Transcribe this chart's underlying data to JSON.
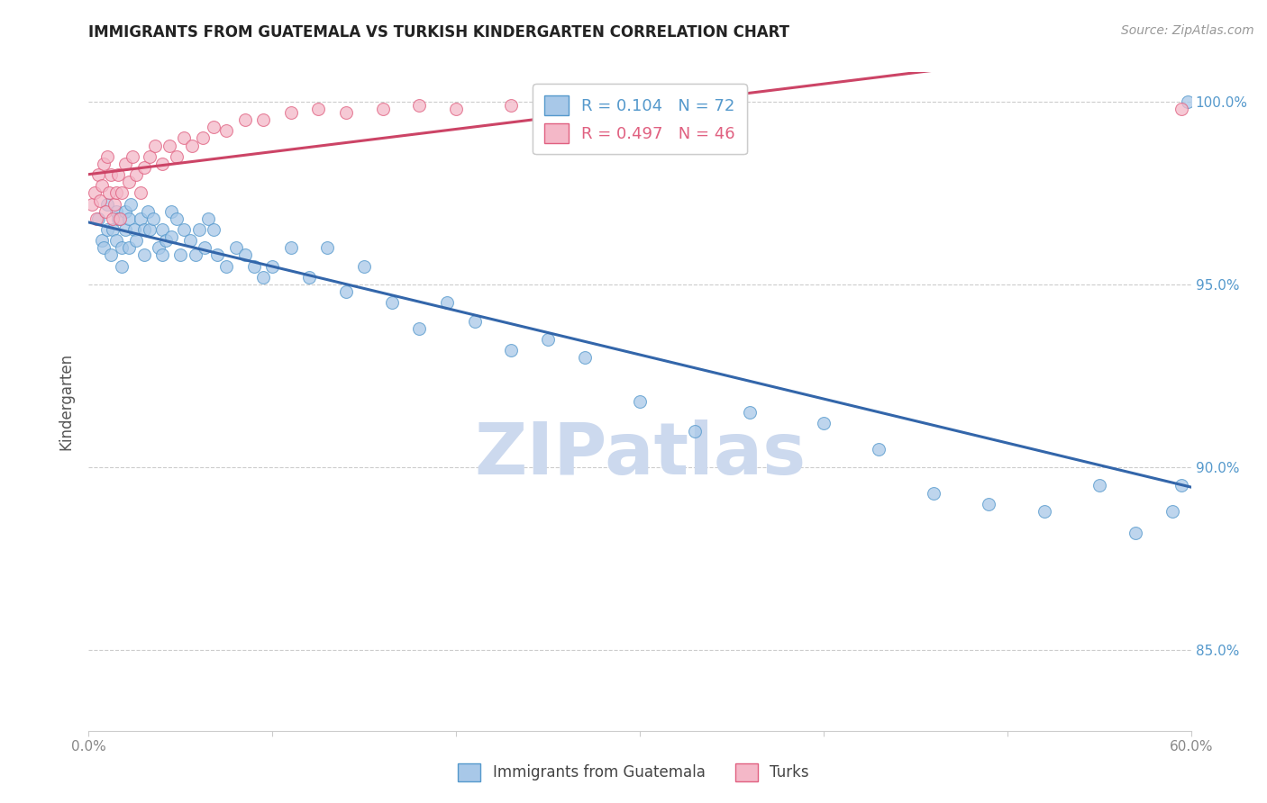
{
  "title": "IMMIGRANTS FROM GUATEMALA VS TURKISH KINDERGARTEN CORRELATION CHART",
  "source": "Source: ZipAtlas.com",
  "ylabel": "Kindergarten",
  "legend1_label": "Immigrants from Guatemala",
  "legend2_label": "Turks",
  "R1": 0.104,
  "N1": 72,
  "R2": 0.497,
  "N2": 46,
  "blue_fill": "#a8c8e8",
  "blue_edge": "#5599cc",
  "pink_fill": "#f4b8c8",
  "pink_edge": "#e06080",
  "blue_line_color": "#3366aa",
  "pink_line_color": "#cc4466",
  "xlim": [
    0.0,
    0.6
  ],
  "ylim": [
    0.828,
    1.008
  ],
  "yticks": [
    0.85,
    0.9,
    0.95,
    1.0
  ],
  "xticks": [
    0.0,
    0.1,
    0.2,
    0.3,
    0.4,
    0.5,
    0.6
  ],
  "blue_x": [
    0.005,
    0.007,
    0.008,
    0.01,
    0.01,
    0.012,
    0.013,
    0.015,
    0.015,
    0.016,
    0.018,
    0.018,
    0.02,
    0.02,
    0.022,
    0.022,
    0.023,
    0.025,
    0.026,
    0.028,
    0.03,
    0.03,
    0.032,
    0.033,
    0.035,
    0.038,
    0.04,
    0.04,
    0.042,
    0.045,
    0.045,
    0.048,
    0.05,
    0.052,
    0.055,
    0.058,
    0.06,
    0.063,
    0.065,
    0.068,
    0.07,
    0.075,
    0.08,
    0.085,
    0.09,
    0.095,
    0.1,
    0.11,
    0.12,
    0.13,
    0.14,
    0.15,
    0.165,
    0.18,
    0.195,
    0.21,
    0.23,
    0.25,
    0.27,
    0.3,
    0.33,
    0.36,
    0.4,
    0.43,
    0.46,
    0.49,
    0.52,
    0.55,
    0.57,
    0.59,
    0.595,
    0.598
  ],
  "blue_y": [
    0.968,
    0.962,
    0.96,
    0.972,
    0.965,
    0.958,
    0.965,
    0.97,
    0.962,
    0.968,
    0.96,
    0.955,
    0.97,
    0.965,
    0.968,
    0.96,
    0.972,
    0.965,
    0.962,
    0.968,
    0.965,
    0.958,
    0.97,
    0.965,
    0.968,
    0.96,
    0.965,
    0.958,
    0.962,
    0.97,
    0.963,
    0.968,
    0.958,
    0.965,
    0.962,
    0.958,
    0.965,
    0.96,
    0.968,
    0.965,
    0.958,
    0.955,
    0.96,
    0.958,
    0.955,
    0.952,
    0.955,
    0.96,
    0.952,
    0.96,
    0.948,
    0.955,
    0.945,
    0.938,
    0.945,
    0.94,
    0.932,
    0.935,
    0.93,
    0.918,
    0.91,
    0.915,
    0.912,
    0.905,
    0.893,
    0.89,
    0.888,
    0.895,
    0.882,
    0.888,
    0.895,
    1.0
  ],
  "pink_x": [
    0.002,
    0.003,
    0.004,
    0.005,
    0.006,
    0.007,
    0.008,
    0.009,
    0.01,
    0.011,
    0.012,
    0.013,
    0.014,
    0.015,
    0.016,
    0.017,
    0.018,
    0.02,
    0.022,
    0.024,
    0.026,
    0.028,
    0.03,
    0.033,
    0.036,
    0.04,
    0.044,
    0.048,
    0.052,
    0.056,
    0.062,
    0.068,
    0.075,
    0.085,
    0.095,
    0.11,
    0.125,
    0.14,
    0.16,
    0.18,
    0.2,
    0.23,
    0.26,
    0.3,
    0.35,
    0.595
  ],
  "pink_y": [
    0.972,
    0.975,
    0.968,
    0.98,
    0.973,
    0.977,
    0.983,
    0.97,
    0.985,
    0.975,
    0.98,
    0.968,
    0.972,
    0.975,
    0.98,
    0.968,
    0.975,
    0.983,
    0.978,
    0.985,
    0.98,
    0.975,
    0.982,
    0.985,
    0.988,
    0.983,
    0.988,
    0.985,
    0.99,
    0.988,
    0.99,
    0.993,
    0.992,
    0.995,
    0.995,
    0.997,
    0.998,
    0.997,
    0.998,
    0.999,
    0.998,
    0.999,
    0.999,
    0.998,
    0.999,
    0.998
  ],
  "watermark": "ZIPatlas",
  "watermark_color": "#ccd9ee",
  "bg_color": "#ffffff",
  "grid_color": "#cccccc",
  "tick_color": "#888888",
  "right_tick_color": "#5599cc",
  "title_fontsize": 12,
  "source_fontsize": 10,
  "axis_fontsize": 11,
  "legend_fontsize": 13
}
